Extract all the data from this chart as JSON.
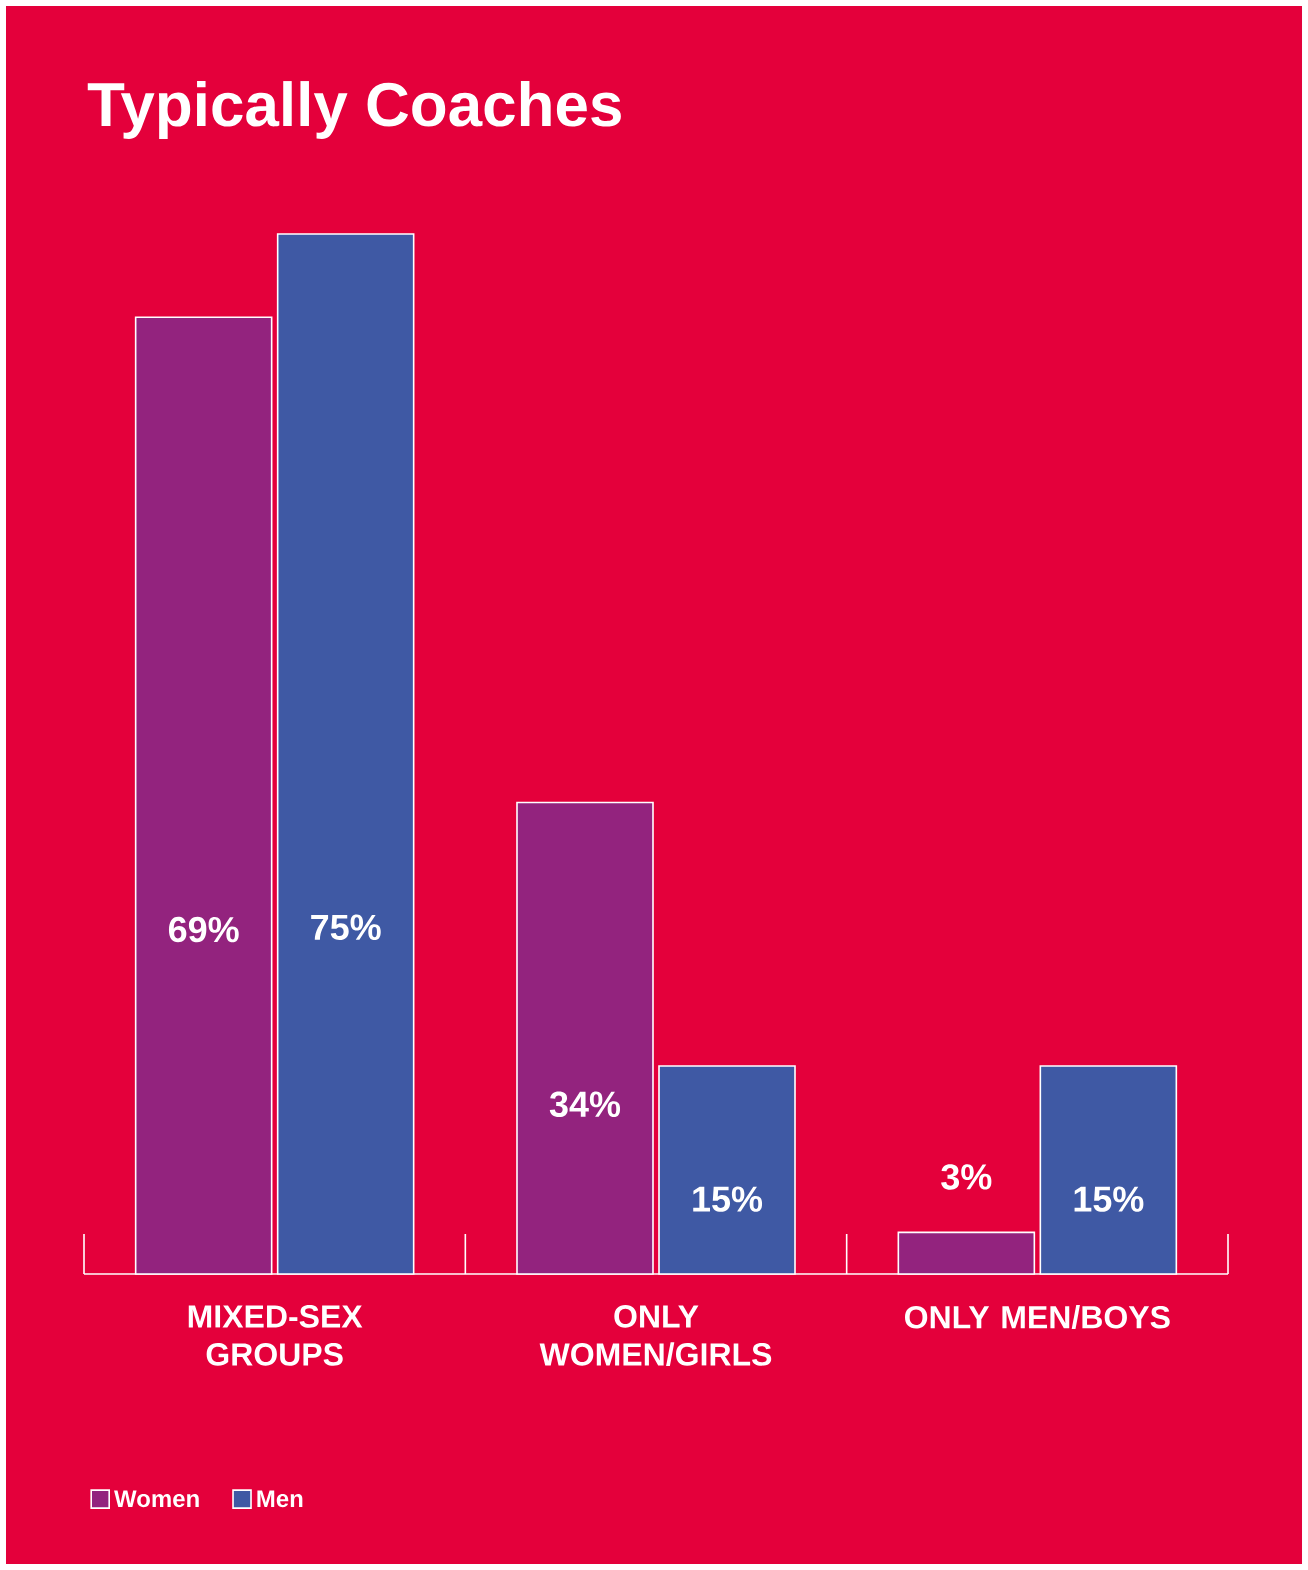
{
  "chart_data": {
    "type": "bar",
    "title": "Typically Coaches",
    "categories": [
      "MIXED-SEX GROUPS",
      "ONLY WOMEN/GIRLS",
      "ONLY MEN/BOYS"
    ],
    "series": [
      {
        "name": "Women",
        "color": "#93237e",
        "values": [
          69,
          34,
          3
        ],
        "value_labels": [
          "69%",
          "34%",
          "3%"
        ]
      },
      {
        "name": "Men",
        "color": "#3f59a4",
        "values": [
          75,
          15,
          15
        ],
        "value_labels": [
          "75%",
          "15%",
          "15%"
        ]
      }
    ],
    "legend": "bottom left"
  }
}
